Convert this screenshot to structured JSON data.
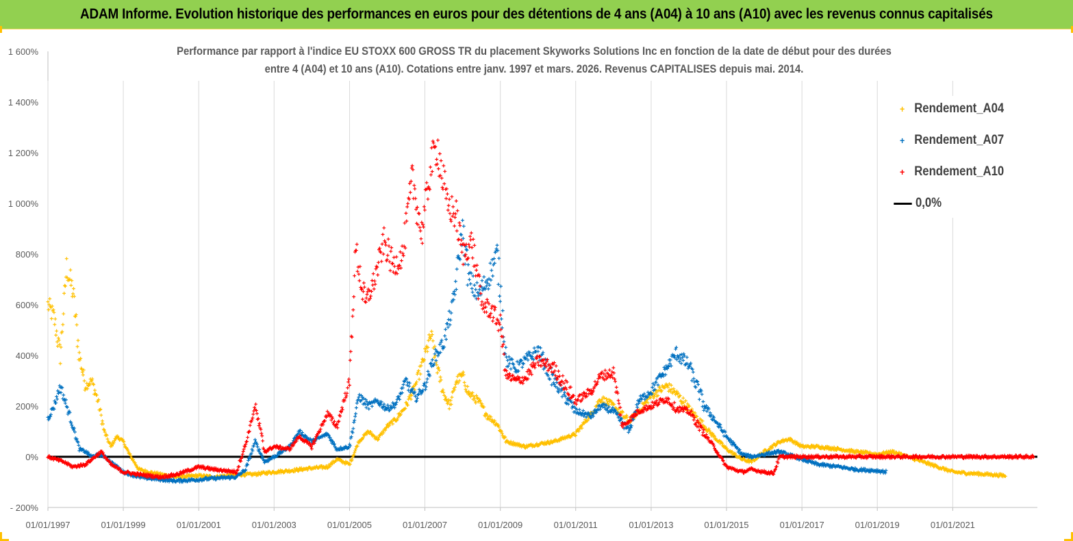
{
  "banner": {
    "title": "ADAM Informe. Evolution historique des performances en euros pour des détentions de 4 ans (A04) à 10 ans (A10) avec les revenus connus capitalisés"
  },
  "chart_data": {
    "type": "scatter",
    "title_line1": "Performance par rapport à l'indice EU STOXX 600 GROSS TR  du placement Skyworks Solutions Inc en fonction de la date de début pour des durées",
    "title_line2": "entre 4 (A04) et 10 ans (A10). Cotations entre janv. 1997 et mars. 2026. Revenus CAPITALISES depuis mai. 2014.",
    "xlabel": "",
    "ylabel": "",
    "xlim": [
      "1997-01-01",
      "2023-04-01"
    ],
    "ylim": [
      -200,
      1600
    ],
    "y_ticks": [
      -200,
      0,
      200,
      400,
      600,
      800,
      1000,
      1200,
      1400,
      1600
    ],
    "y_tick_labels": [
      "- 200%",
      "0%",
      "200%",
      "400%",
      "600%",
      "800%",
      "1 000%",
      "1 200%",
      "1 400%",
      "1 600%"
    ],
    "x_ticks": [
      "1997-01-01",
      "1999-01-01",
      "2001-01-01",
      "2003-01-01",
      "2005-01-01",
      "2007-01-01",
      "2009-01-01",
      "2011-01-01",
      "2013-01-01",
      "2015-01-01",
      "2017-01-01",
      "2019-01-01",
      "2021-01-01"
    ],
    "x_tick_labels": [
      "01/01/1997",
      "01/01/1999",
      "01/01/2001",
      "01/01/2003",
      "01/01/2005",
      "01/01/2007",
      "01/01/2009",
      "01/01/2011",
      "01/01/2013",
      "01/01/2015",
      "01/01/2017",
      "01/01/2019",
      "01/01/2021"
    ],
    "grid": "vertical",
    "legend_position": "top-right",
    "series": [
      {
        "name": "Rendement_A04",
        "color": "#ffc000",
        "marker": "plus",
        "points": [
          [
            "1997-01-01",
            600
          ],
          [
            "1997-03-01",
            550
          ],
          [
            "1997-05-01",
            400
          ],
          [
            "1997-07-01",
            750
          ],
          [
            "1997-09-01",
            650
          ],
          [
            "1997-11-01",
            400
          ],
          [
            "1998-01-01",
            280
          ],
          [
            "1998-03-01",
            300
          ],
          [
            "1998-05-01",
            220
          ],
          [
            "1998-07-01",
            100
          ],
          [
            "1998-09-01",
            40
          ],
          [
            "1998-11-01",
            80
          ],
          [
            "1999-01-01",
            60
          ],
          [
            "1999-03-01",
            10
          ],
          [
            "1999-06-01",
            -50
          ],
          [
            "1999-09-01",
            -60
          ],
          [
            "2000-01-01",
            -70
          ],
          [
            "2000-06-01",
            -80
          ],
          [
            "2001-01-01",
            -75
          ],
          [
            "2001-06-01",
            -80
          ],
          [
            "2002-01-01",
            -70
          ],
          [
            "2002-06-01",
            -70
          ],
          [
            "2003-01-01",
            -60
          ],
          [
            "2003-06-01",
            -55
          ],
          [
            "2004-01-01",
            -45
          ],
          [
            "2004-06-01",
            -40
          ],
          [
            "2004-09-01",
            -10
          ],
          [
            "2005-01-01",
            -30
          ],
          [
            "2005-04-01",
            60
          ],
          [
            "2005-07-01",
            100
          ],
          [
            "2005-10-01",
            70
          ],
          [
            "2006-01-01",
            120
          ],
          [
            "2006-04-01",
            150
          ],
          [
            "2006-07-01",
            200
          ],
          [
            "2006-10-01",
            280
          ],
          [
            "2007-01-01",
            400
          ],
          [
            "2007-03-01",
            480
          ],
          [
            "2007-05-01",
            350
          ],
          [
            "2007-07-01",
            250
          ],
          [
            "2007-09-01",
            200
          ],
          [
            "2007-11-01",
            300
          ],
          [
            "2008-01-01",
            320
          ],
          [
            "2008-03-01",
            250
          ],
          [
            "2008-06-01",
            220
          ],
          [
            "2008-09-01",
            160
          ],
          [
            "2008-12-01",
            130
          ],
          [
            "2009-03-01",
            60
          ],
          [
            "2009-06-01",
            50
          ],
          [
            "2009-09-01",
            40
          ],
          [
            "2010-01-01",
            50
          ],
          [
            "2010-06-01",
            60
          ],
          [
            "2011-01-01",
            90
          ],
          [
            "2011-06-01",
            170
          ],
          [
            "2011-09-01",
            230
          ],
          [
            "2012-01-01",
            200
          ],
          [
            "2012-06-01",
            140
          ],
          [
            "2012-09-01",
            180
          ],
          [
            "2013-01-01",
            240
          ],
          [
            "2013-06-01",
            280
          ],
          [
            "2013-09-01",
            250
          ],
          [
            "2014-01-01",
            190
          ],
          [
            "2014-06-01",
            120
          ],
          [
            "2014-09-01",
            80
          ],
          [
            "2015-01-01",
            30
          ],
          [
            "2015-06-01",
            -10
          ],
          [
            "2015-09-01",
            -20
          ],
          [
            "2016-01-01",
            20
          ],
          [
            "2016-06-01",
            60
          ],
          [
            "2016-09-01",
            70
          ],
          [
            "2017-01-01",
            40
          ],
          [
            "2017-06-01",
            40
          ],
          [
            "2018-01-01",
            30
          ],
          [
            "2018-06-01",
            20
          ],
          [
            "2019-01-01",
            10
          ],
          [
            "2019-06-01",
            20
          ],
          [
            "2020-01-01",
            -10
          ],
          [
            "2020-06-01",
            -30
          ],
          [
            "2021-01-01",
            -60
          ],
          [
            "2021-06-01",
            -65
          ],
          [
            "2022-01-01",
            -70
          ],
          [
            "2022-06-01",
            -75
          ]
        ]
      },
      {
        "name": "Rendement_A07",
        "color": "#0070c0",
        "marker": "plus",
        "points": [
          [
            "1997-01-01",
            150
          ],
          [
            "1997-03-01",
            200
          ],
          [
            "1997-05-01",
            280
          ],
          [
            "1997-07-01",
            200
          ],
          [
            "1997-09-01",
            120
          ],
          [
            "1997-11-01",
            30
          ],
          [
            "1998-01-01",
            20
          ],
          [
            "1998-03-01",
            0
          ],
          [
            "1998-06-01",
            10
          ],
          [
            "1998-09-01",
            -20
          ],
          [
            "1999-01-01",
            -60
          ],
          [
            "1999-06-01",
            -80
          ],
          [
            "2000-01-01",
            -90
          ],
          [
            "2000-06-01",
            -95
          ],
          [
            "2001-01-01",
            -90
          ],
          [
            "2001-06-01",
            -85
          ],
          [
            "2002-01-01",
            -80
          ],
          [
            "2002-04-01",
            -50
          ],
          [
            "2002-07-01",
            60
          ],
          [
            "2002-10-01",
            -20
          ],
          [
            "2003-01-01",
            0
          ],
          [
            "2003-06-01",
            40
          ],
          [
            "2003-09-01",
            100
          ],
          [
            "2004-01-01",
            60
          ],
          [
            "2004-06-01",
            90
          ],
          [
            "2004-09-01",
            30
          ],
          [
            "2005-01-01",
            40
          ],
          [
            "2005-04-01",
            240
          ],
          [
            "2005-07-01",
            200
          ],
          [
            "2005-10-01",
            220
          ],
          [
            "2006-01-01",
            190
          ],
          [
            "2006-04-01",
            210
          ],
          [
            "2006-07-01",
            300
          ],
          [
            "2006-10-01",
            230
          ],
          [
            "2007-01-01",
            280
          ],
          [
            "2007-04-01",
            390
          ],
          [
            "2007-07-01",
            450
          ],
          [
            "2007-10-01",
            600
          ],
          [
            "2008-01-01",
            900
          ],
          [
            "2008-03-01",
            700
          ],
          [
            "2008-06-01",
            640
          ],
          [
            "2008-09-01",
            700
          ],
          [
            "2008-12-01",
            800
          ],
          [
            "2009-03-01",
            380
          ],
          [
            "2009-06-01",
            350
          ],
          [
            "2009-09-01",
            380
          ],
          [
            "2010-01-01",
            420
          ],
          [
            "2010-06-01",
            300
          ],
          [
            "2011-01-01",
            180
          ],
          [
            "2011-06-01",
            160
          ],
          [
            "2011-09-01",
            200
          ],
          [
            "2012-01-01",
            180
          ],
          [
            "2012-06-01",
            100
          ],
          [
            "2012-09-01",
            220
          ],
          [
            "2013-01-01",
            260
          ],
          [
            "2013-06-01",
            350
          ],
          [
            "2013-09-01",
            410
          ],
          [
            "2014-01-01",
            360
          ],
          [
            "2014-06-01",
            200
          ],
          [
            "2014-09-01",
            150
          ],
          [
            "2015-01-01",
            80
          ],
          [
            "2015-06-01",
            10
          ],
          [
            "2015-09-01",
            0
          ],
          [
            "2016-01-01",
            10
          ],
          [
            "2016-06-01",
            20
          ],
          [
            "2017-01-01",
            -10
          ],
          [
            "2017-06-01",
            -30
          ],
          [
            "2018-01-01",
            -40
          ],
          [
            "2018-06-01",
            -50
          ],
          [
            "2019-01-01",
            -55
          ],
          [
            "2019-04-01",
            -60
          ]
        ]
      },
      {
        "name": "Rendement_A10",
        "color": "#ff0000",
        "marker": "plus",
        "points": [
          [
            "1997-01-01",
            0
          ],
          [
            "1997-06-01",
            -20
          ],
          [
            "1997-09-01",
            -40
          ],
          [
            "1998-01-01",
            -30
          ],
          [
            "1998-06-01",
            20
          ],
          [
            "1998-09-01",
            -30
          ],
          [
            "1999-01-01",
            -60
          ],
          [
            "1999-06-01",
            -70
          ],
          [
            "2000-01-01",
            -80
          ],
          [
            "2000-06-01",
            -70
          ],
          [
            "2001-01-01",
            -40
          ],
          [
            "2001-06-01",
            -50
          ],
          [
            "2002-01-01",
            -60
          ],
          [
            "2002-04-01",
            50
          ],
          [
            "2002-07-01",
            200
          ],
          [
            "2002-10-01",
            20
          ],
          [
            "2003-01-01",
            40
          ],
          [
            "2003-06-01",
            30
          ],
          [
            "2003-09-01",
            80
          ],
          [
            "2004-01-01",
            40
          ],
          [
            "2004-06-01",
            170
          ],
          [
            "2004-09-01",
            120
          ],
          [
            "2005-01-01",
            300
          ],
          [
            "2005-03-01",
            820
          ],
          [
            "2005-06-01",
            600
          ],
          [
            "2005-09-01",
            700
          ],
          [
            "2005-12-01",
            850
          ],
          [
            "2006-03-01",
            750
          ],
          [
            "2006-06-01",
            800
          ],
          [
            "2006-09-01",
            1100
          ],
          [
            "2006-12-01",
            880
          ],
          [
            "2007-03-01",
            1150
          ],
          [
            "2007-05-01",
            1230
          ],
          [
            "2007-08-01",
            1000
          ],
          [
            "2007-11-01",
            950
          ],
          [
            "2008-01-01",
            800
          ],
          [
            "2008-04-01",
            850
          ],
          [
            "2008-07-01",
            600
          ],
          [
            "2008-10-01",
            580
          ],
          [
            "2009-01-01",
            520
          ],
          [
            "2009-03-01",
            320
          ],
          [
            "2009-06-01",
            300
          ],
          [
            "2009-09-01",
            310
          ],
          [
            "2010-01-01",
            380
          ],
          [
            "2010-06-01",
            350
          ],
          [
            "2011-01-01",
            220
          ],
          [
            "2011-06-01",
            260
          ],
          [
            "2011-09-01",
            320
          ],
          [
            "2012-01-01",
            330
          ],
          [
            "2012-04-01",
            120
          ],
          [
            "2012-09-01",
            180
          ],
          [
            "2013-01-01",
            200
          ],
          [
            "2013-06-01",
            230
          ],
          [
            "2013-09-01",
            190
          ],
          [
            "2014-01-01",
            180
          ],
          [
            "2014-06-01",
            90
          ],
          [
            "2014-09-01",
            40
          ],
          [
            "2015-01-01",
            -40
          ],
          [
            "2015-06-01",
            -60
          ],
          [
            "2015-09-01",
            -50
          ],
          [
            "2016-01-01",
            -60
          ],
          [
            "2016-04-01",
            -65
          ],
          [
            "2016-06-01",
            0
          ],
          [
            "2018-01-01",
            0
          ],
          [
            "2020-01-01",
            0
          ],
          [
            "2022-01-01",
            0
          ],
          [
            "2023-03-01",
            0
          ]
        ]
      },
      {
        "name": "0,0%",
        "color": "#000000",
        "marker": "line",
        "y": 0
      }
    ]
  }
}
